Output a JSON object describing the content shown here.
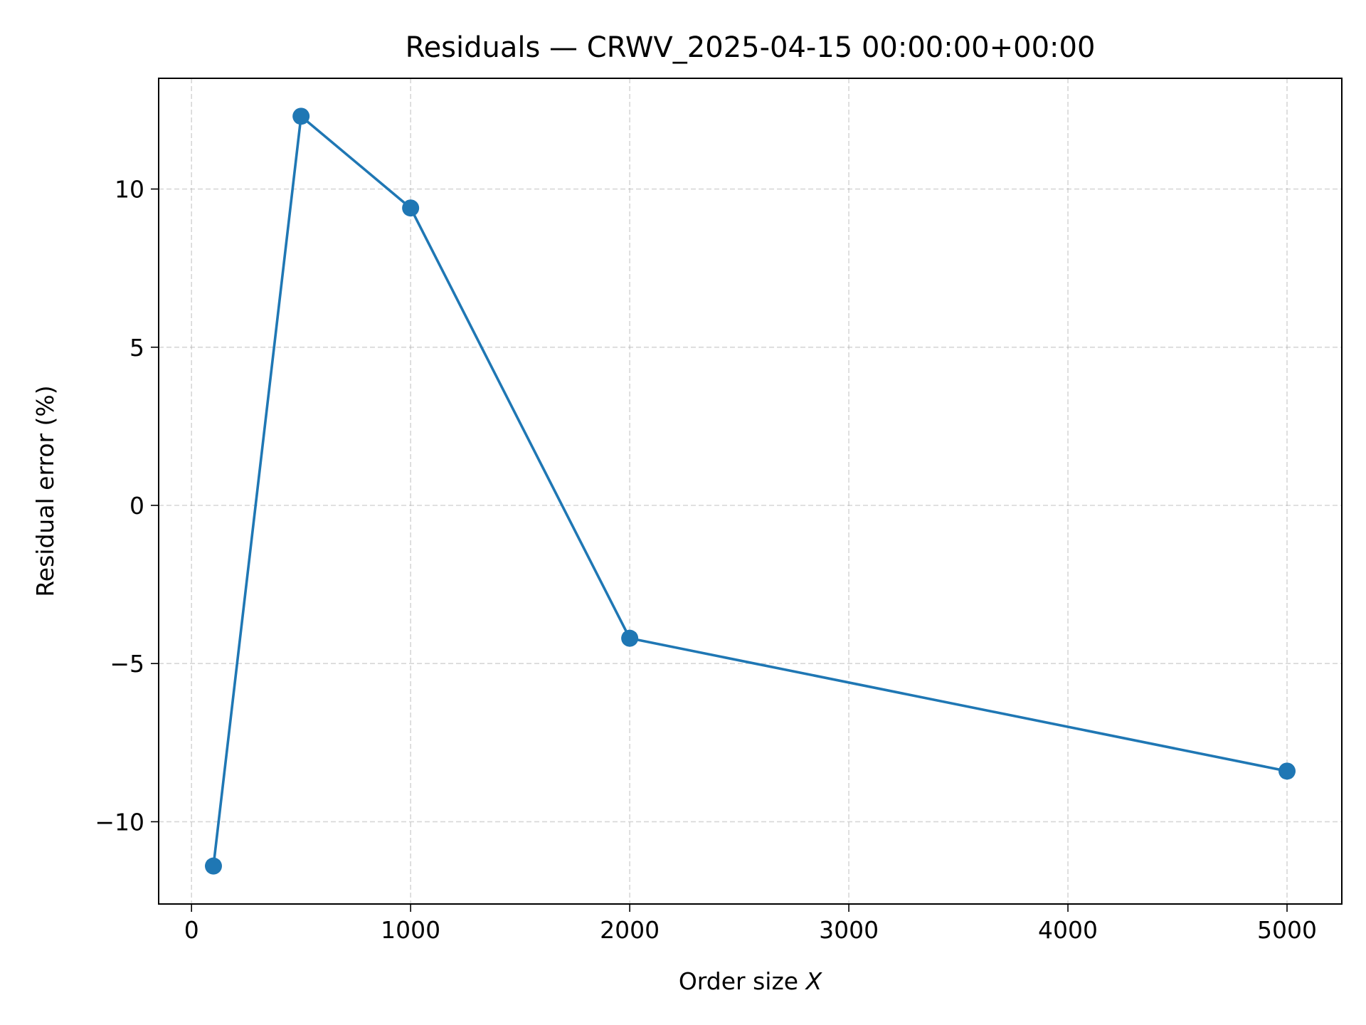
{
  "chart_data": {
    "type": "line",
    "title": "Residuals — CRWV_2025-04-15 00:00:00+00:00",
    "xlabel": "Order size X",
    "xlabel_prefix": "Order size ",
    "xlabel_var": "X",
    "ylabel": "Residual error (%)",
    "xlim": [
      -150,
      5250
    ],
    "ylim": [
      -12.6,
      13.5
    ],
    "xticks": [
      0,
      1000,
      2000,
      3000,
      4000,
      5000
    ],
    "xtick_labels": [
      "0",
      "1000",
      "2000",
      "3000",
      "4000",
      "5000"
    ],
    "yticks": [
      -10,
      -5,
      0,
      5,
      10
    ],
    "ytick_labels": [
      "−10",
      "−5",
      "0",
      "5",
      "10"
    ],
    "grid": true,
    "series": [
      {
        "color": "#1f77b4",
        "marker": "circle",
        "x": [
          100,
          500,
          1000,
          2000,
          5000
        ],
        "y": [
          -11.4,
          12.3,
          9.4,
          -4.2,
          -8.4
        ]
      }
    ]
  }
}
